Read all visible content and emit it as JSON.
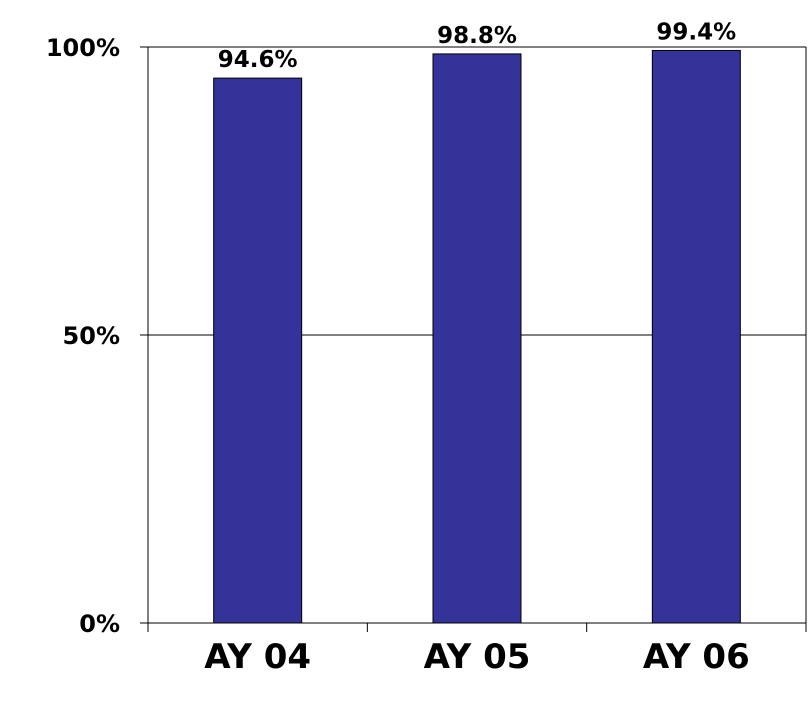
{
  "chart_data": {
    "type": "bar",
    "title": "",
    "xlabel": "",
    "ylabel": "",
    "categories": [
      "AY 04",
      "AY 05",
      "AY 06"
    ],
    "values": [
      94.6,
      98.8,
      99.4
    ],
    "data_labels": [
      "94.6%",
      "98.8%",
      "99.4%"
    ],
    "ylim": [
      0,
      100
    ],
    "yticks": [
      0,
      50,
      100
    ],
    "ytick_labels": [
      "0%",
      "50%",
      "100%"
    ],
    "grid": true,
    "legend": "none",
    "bar_color": "#333399"
  }
}
